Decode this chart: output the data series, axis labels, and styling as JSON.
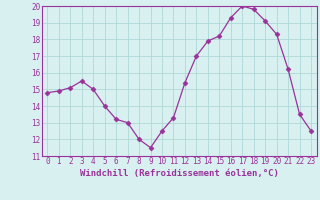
{
  "x": [
    0,
    1,
    2,
    3,
    4,
    5,
    6,
    7,
    8,
    9,
    10,
    11,
    12,
    13,
    14,
    15,
    16,
    17,
    18,
    19,
    20,
    21,
    22,
    23
  ],
  "y": [
    14.8,
    14.9,
    15.1,
    15.5,
    15.0,
    14.0,
    13.2,
    13.0,
    12.0,
    11.5,
    12.5,
    13.3,
    15.4,
    17.0,
    17.9,
    18.2,
    19.3,
    20.0,
    19.8,
    19.1,
    18.3,
    16.2,
    13.5,
    12.5
  ],
  "line_color": "#993399",
  "marker": "D",
  "markersize": 2.5,
  "linewidth": 0.9,
  "xlabel": "Windchill (Refroidissement éolien,°C)",
  "ylim": [
    11,
    20
  ],
  "xlim": [
    -0.5,
    23.5
  ],
  "yticks": [
    11,
    12,
    13,
    14,
    15,
    16,
    17,
    18,
    19,
    20
  ],
  "xticks": [
    0,
    1,
    2,
    3,
    4,
    5,
    6,
    7,
    8,
    9,
    10,
    11,
    12,
    13,
    14,
    15,
    16,
    17,
    18,
    19,
    20,
    21,
    22,
    23
  ],
  "bg_color": "#d8f0f0",
  "grid_color": "#b0d8d8",
  "tick_label_fontsize": 5.5,
  "xlabel_fontsize": 6.5,
  "spine_color": "#993399"
}
